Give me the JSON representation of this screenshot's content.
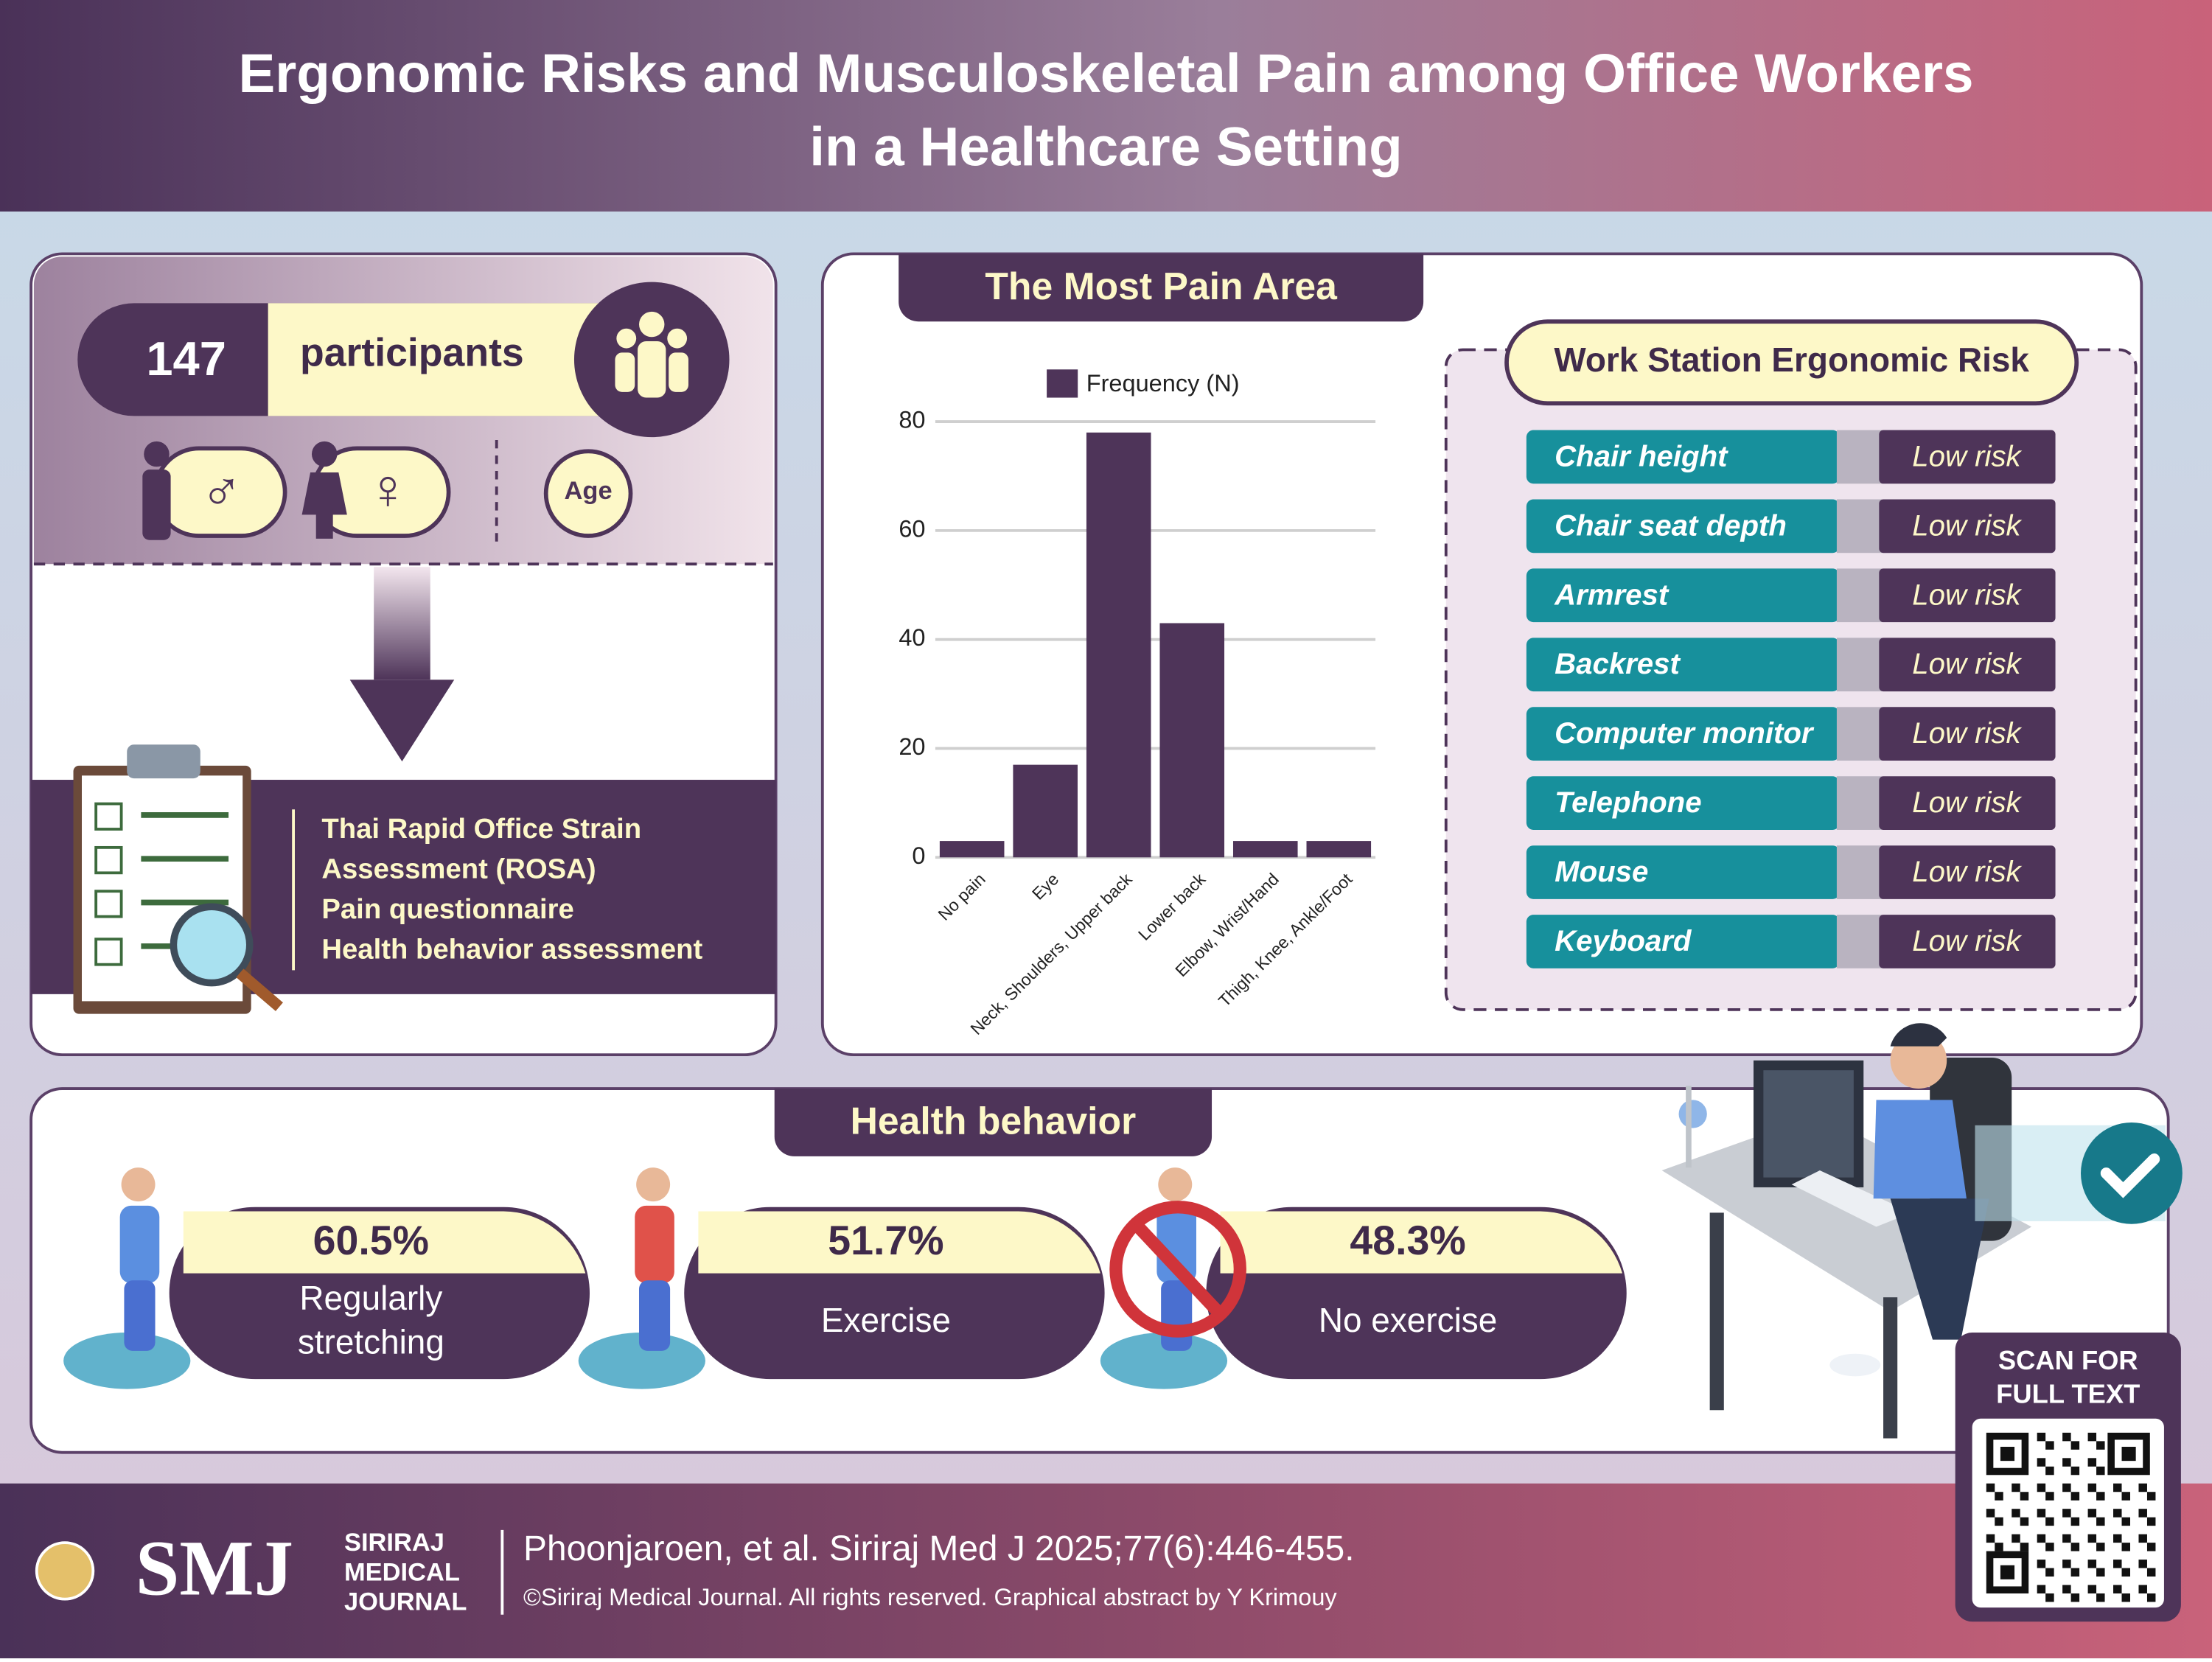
{
  "header": {
    "title_lines": [
      "Ergonomic Risks and Musculoskeletal Pain among Office Workers",
      "in a Healthcare Setting"
    ]
  },
  "participants": {
    "count": "147",
    "label": "participants",
    "age": "Age"
  },
  "methods": [
    "Thai Rapid Office Strain",
    "Assessment (ROSA)",
    "Pain questionnaire",
    "Health behavior assessment"
  ],
  "chart_data": {
    "type": "bar",
    "title": "The Most Pain Area",
    "categories": [
      "No pain",
      "Eye",
      "Neck, Shoulders, Upper back",
      "Lower back",
      "Elbow, Wrist/Hand",
      "Thigh, Knee, Ankle/Foot"
    ],
    "series": [
      {
        "name": "Frequency (N)",
        "color": "#4e3459",
        "values": [
          3,
          17,
          78,
          43,
          3,
          3
        ]
      }
    ],
    "ylim": [
      0,
      80
    ],
    "yticks": [
      0,
      20,
      40,
      60,
      80
    ],
    "grid": true
  },
  "risk_table": {
    "title": "Work Station Ergonomic Risk",
    "rows": [
      [
        "Chair height",
        "Low risk"
      ],
      [
        "Chair seat depth",
        "Low risk"
      ],
      [
        "Armrest",
        "Low risk"
      ],
      [
        "Backrest",
        "Low risk"
      ],
      [
        "Computer monitor",
        "Low risk"
      ],
      [
        "Telephone",
        "Low risk"
      ],
      [
        "Mouse",
        "Low risk"
      ],
      [
        "Keyboard",
        "Low risk"
      ]
    ]
  },
  "health_behavior": {
    "title": "Health behavior",
    "items": [
      {
        "percent": "60.5%",
        "label_lines": [
          "Regularly",
          "stretching"
        ]
      },
      {
        "percent": "51.7%",
        "label_lines": [
          "Exercise"
        ]
      },
      {
        "percent": "48.3%",
        "label_lines": [
          "No exercise"
        ]
      }
    ]
  },
  "qr": {
    "text_lines": [
      "SCAN FOR",
      "FULL TEXT"
    ]
  },
  "footer": {
    "logo": "SMJ",
    "journal_lines": [
      "SIRIRAJ",
      "MEDICAL",
      "JOURNAL"
    ],
    "citation": "Phoonjaroen, et al. Siriraj Med J 2025;77(6):446-455.",
    "credit": "©Siriraj Medical Journal. All rights reserved. Graphical abstract by Y Krimouy"
  }
}
